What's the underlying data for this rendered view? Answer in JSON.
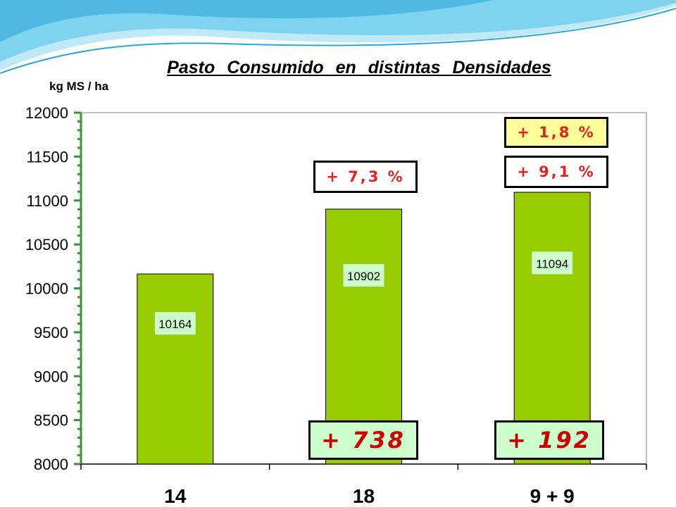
{
  "slide": {
    "title": "Pasto  Consumido  en  distintas  Densidades",
    "unit_label": "kg MS / ha",
    "colors": {
      "bar_fill": "#99cc00",
      "axis": "#339933",
      "label_box": "#ccffcc",
      "callout_text": "#e8201e",
      "highlight_box": "#ffff99"
    }
  },
  "chart_data": {
    "type": "bar",
    "title": "Pasto Consumido en distintas Densidades",
    "ylabel": "kg MS / ha",
    "categories": [
      "14",
      "18",
      "9 + 9"
    ],
    "values": [
      10164,
      10902,
      11094
    ],
    "data_labels": [
      "10164",
      "10902",
      "11094"
    ],
    "ylim": [
      8000,
      12000
    ],
    "yticks": [
      "8000",
      "8500",
      "9000",
      "9500",
      "10000",
      "10500",
      "11000",
      "11500",
      "12000"
    ],
    "grid": false,
    "legend": "none"
  },
  "annotations": {
    "pct_18": "+ 7,3 %",
    "pct_99": "+ 9,1 %",
    "pct_99_vs_18": "+ 1,8 %",
    "diff_18": "+ 738",
    "diff_99": "+ 192"
  }
}
